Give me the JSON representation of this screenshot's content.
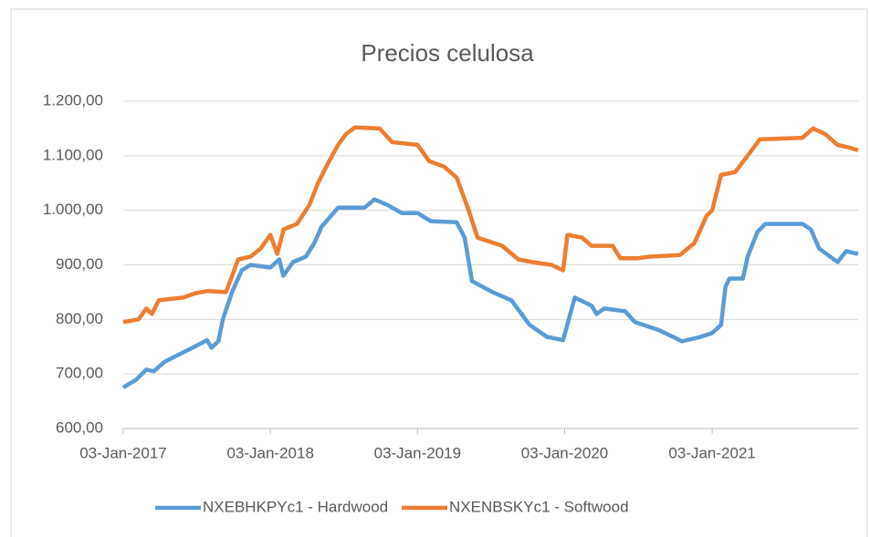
{
  "chart_data": {
    "type": "line",
    "title": "Precios celulosa",
    "xlim": [
      "2017-01-03",
      "2021-12-31"
    ],
    "xticks": [
      {
        "value": "2017-01-03",
        "label": "03-Jan-2017"
      },
      {
        "value": "2018-01-03",
        "label": "03-Jan-2018"
      },
      {
        "value": "2019-01-03",
        "label": "03-Jan-2019"
      },
      {
        "value": "2020-01-03",
        "label": "03-Jan-2020"
      },
      {
        "value": "2021-01-03",
        "label": "03-Jan-2021"
      }
    ],
    "ylim": [
      600,
      1200
    ],
    "yticks": [
      {
        "value": 600,
        "label": "600,00"
      },
      {
        "value": 700,
        "label": "700,00"
      },
      {
        "value": 800,
        "label": "800,00"
      },
      {
        "value": 900,
        "label": "900,00"
      },
      {
        "value": 1000,
        "label": "1.000,00"
      },
      {
        "value": 1100,
        "label": "1.100,00"
      },
      {
        "value": 1200,
        "label": "1.200,00"
      }
    ],
    "grid": true,
    "legend": "bottom",
    "series": [
      {
        "name": "NXEBHKPYc1 - Hardwood",
        "color": "#5b9bd5",
        "x": [
          "2017-01-03",
          "2017-02-05",
          "2017-03-01",
          "2017-03-20",
          "2017-04-15",
          "2017-05-28",
          "2017-07-12",
          "2017-07-30",
          "2017-08-10",
          "2017-08-27",
          "2017-09-07",
          "2017-09-30",
          "2017-10-24",
          "2017-11-15",
          "2018-01-03",
          "2018-01-25",
          "2018-02-04",
          "2018-02-28",
          "2018-04-01",
          "2018-04-22",
          "2018-05-10",
          "2018-06-20",
          "2018-08-25",
          "2018-09-18",
          "2018-10-20",
          "2018-11-25",
          "2019-01-03",
          "2019-02-05",
          "2019-04-10",
          "2019-04-30",
          "2019-05-18",
          "2019-07-08",
          "2019-08-24",
          "2019-10-08",
          "2019-11-20",
          "2019-12-30",
          "2020-01-28",
          "2020-03-10",
          "2020-03-22",
          "2020-04-10",
          "2020-06-01",
          "2020-06-25",
          "2020-08-25",
          "2020-10-20",
          "2020-12-05",
          "2021-01-03",
          "2021-01-25",
          "2021-02-05",
          "2021-02-15",
          "2021-03-20",
          "2021-04-01",
          "2021-04-25",
          "2021-05-15",
          "2021-08-15",
          "2021-09-05",
          "2021-09-25",
          "2021-11-10",
          "2021-12-01",
          "2021-12-31"
        ],
        "values": [
          675,
          690,
          708,
          705,
          722,
          738,
          755,
          762,
          748,
          760,
          800,
          850,
          890,
          900,
          895,
          910,
          880,
          905,
          915,
          940,
          970,
          1005,
          1005,
          1020,
          1010,
          995,
          995,
          980,
          978,
          950,
          870,
          850,
          835,
          790,
          768,
          762,
          840,
          825,
          810,
          820,
          815,
          795,
          780,
          760,
          768,
          775,
          790,
          860,
          875,
          875,
          915,
          960,
          975,
          975,
          965,
          930,
          905,
          925,
          920
        ]
      },
      {
        "name": "NXENBSKYc1 - Softwood",
        "color": "#ed7d31",
        "x": [
          "2017-01-03",
          "2017-02-10",
          "2017-03-01",
          "2017-03-15",
          "2017-04-01",
          "2017-06-01",
          "2017-07-01",
          "2017-08-01",
          "2017-09-15",
          "2017-10-15",
          "2017-11-15",
          "2017-12-10",
          "2018-01-03",
          "2018-01-20",
          "2018-02-05",
          "2018-03-10",
          "2018-04-10",
          "2018-05-01",
          "2018-05-25",
          "2018-06-20",
          "2018-07-10",
          "2018-08-01",
          "2018-10-01",
          "2018-11-01",
          "2019-01-03",
          "2019-02-01",
          "2019-03-10",
          "2019-04-10",
          "2019-05-10",
          "2019-06-01",
          "2019-08-01",
          "2019-09-10",
          "2019-10-15",
          "2019-12-01",
          "2019-12-30",
          "2020-01-10",
          "2020-02-15",
          "2020-03-10",
          "2020-05-01",
          "2020-05-20",
          "2020-07-01",
          "2020-08-01",
          "2020-10-15",
          "2020-11-20",
          "2020-12-20",
          "2021-01-03",
          "2021-01-25",
          "2021-03-01",
          "2021-04-01",
          "2021-05-01",
          "2021-08-15",
          "2021-09-10",
          "2021-10-10",
          "2021-11-10",
          "2021-12-10",
          "2021-12-31"
        ],
        "values": [
          795,
          800,
          820,
          810,
          835,
          840,
          848,
          852,
          850,
          910,
          915,
          930,
          955,
          920,
          965,
          975,
          1010,
          1050,
          1085,
          1120,
          1140,
          1152,
          1150,
          1125,
          1120,
          1090,
          1080,
          1060,
          1000,
          950,
          935,
          910,
          905,
          900,
          890,
          955,
          950,
          935,
          935,
          912,
          912,
          915,
          918,
          940,
          990,
          1000,
          1065,
          1070,
          1100,
          1130,
          1133,
          1150,
          1140,
          1120,
          1115,
          1110
        ]
      }
    ]
  }
}
